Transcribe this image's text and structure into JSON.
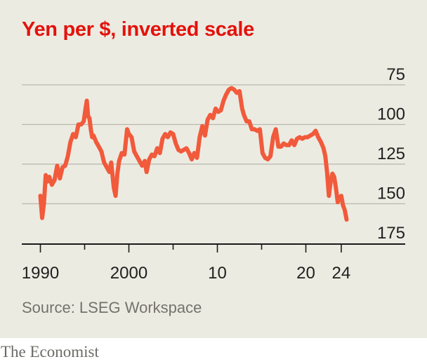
{
  "chart_data": {
    "type": "line",
    "title": "Yen per $, inverted scale",
    "source": "Source: LSEG Workspace",
    "brand": "The Economist",
    "y_axis": {
      "inverted": true,
      "range": [
        175,
        75
      ],
      "ticks": [
        75,
        100,
        125,
        150,
        175
      ],
      "label_side": "right"
    },
    "x_axis": {
      "range": [
        1990,
        2024.8
      ],
      "major_ticks": [
        1990,
        2000,
        2010,
        2020,
        2024
      ],
      "minor_ticks": [
        1995,
        2005,
        2015
      ],
      "tick_labels": [
        "1990",
        "2000",
        "10",
        "20",
        "24"
      ]
    },
    "grid": true,
    "color": "#f15a3b",
    "series": [
      {
        "x": [
          1990.0,
          1990.2,
          1990.4,
          1990.6,
          1990.8,
          1991.0,
          1991.3,
          1991.6,
          1991.9,
          1992.2,
          1992.5,
          1992.8,
          1993.1,
          1993.4,
          1993.7,
          1994.0,
          1994.3,
          1994.6,
          1994.9,
          1995.1,
          1995.25,
          1995.4,
          1995.55,
          1995.7,
          1995.85,
          1996.0,
          1996.3,
          1996.6,
          1996.9,
          1997.2,
          1997.5,
          1997.8,
          1998.0,
          1998.3,
          1998.5,
          1998.7,
          1998.9,
          1999.2,
          1999.5,
          1999.8,
          2000.0,
          2000.3,
          2000.6,
          2000.9,
          2001.2,
          2001.5,
          2001.8,
          2002.0,
          2002.3,
          2002.6,
          2002.9,
          2003.2,
          2003.5,
          2003.8,
          2004.1,
          2004.4,
          2004.7,
          2005.0,
          2005.3,
          2005.6,
          2005.9,
          2006.2,
          2006.5,
          2006.8,
          2007.1,
          2007.4,
          2007.7,
          2008.0,
          2008.3,
          2008.6,
          2008.9,
          2009.2,
          2009.5,
          2009.8,
          2010.1,
          2010.4,
          2010.7,
          2011.0,
          2011.3,
          2011.6,
          2011.9,
          2012.2,
          2012.5,
          2012.8,
          2013.0,
          2013.3,
          2013.6,
          2013.9,
          2014.2,
          2014.5,
          2014.8,
          2015.1,
          2015.4,
          2015.7,
          2016.0,
          2016.3,
          2016.6,
          2016.9,
          2017.2,
          2017.5,
          2017.8,
          2018.1,
          2018.4,
          2018.7,
          2019.0,
          2019.3,
          2019.6,
          2019.9,
          2020.2,
          2020.5,
          2020.8,
          2021.1,
          2021.4,
          2021.7,
          2022.0,
          2022.2,
          2022.4,
          2022.6,
          2022.8,
          2023.0,
          2023.2,
          2023.4,
          2023.6,
          2023.8,
          2024.0,
          2024.2,
          2024.4,
          2024.6
        ],
        "y": [
          145,
          159,
          150,
          132,
          136,
          133,
          138,
          135,
          126,
          134,
          127,
          126,
          120,
          111,
          106,
          108,
          100,
          100,
          98,
          90,
          85,
          95,
          96,
          103,
          108,
          107,
          111,
          114,
          117,
          124,
          127,
          130,
          124,
          140,
          145,
          131,
          123,
          118,
          119,
          103,
          106,
          108,
          117,
          120,
          123,
          126,
          123,
          130,
          122,
          119,
          120,
          115,
          118,
          109,
          106,
          108,
          105,
          106,
          112,
          116,
          117,
          116,
          115,
          118,
          122,
          118,
          121,
          108,
          101,
          107,
          97,
          94,
          96,
          90,
          92,
          91,
          85,
          81,
          78,
          77,
          78,
          80,
          79,
          90,
          94,
          98,
          98,
          103,
          103,
          104,
          103,
          118,
          121,
          122,
          120,
          108,
          103,
          114,
          114,
          112,
          113,
          113,
          110,
          113,
          109,
          108,
          109,
          108,
          108,
          107,
          106,
          104,
          108,
          111,
          115,
          120,
          130,
          145,
          136,
          131,
          133,
          140,
          149,
          146,
          145,
          151,
          154,
          160
        ]
      }
    ]
  }
}
